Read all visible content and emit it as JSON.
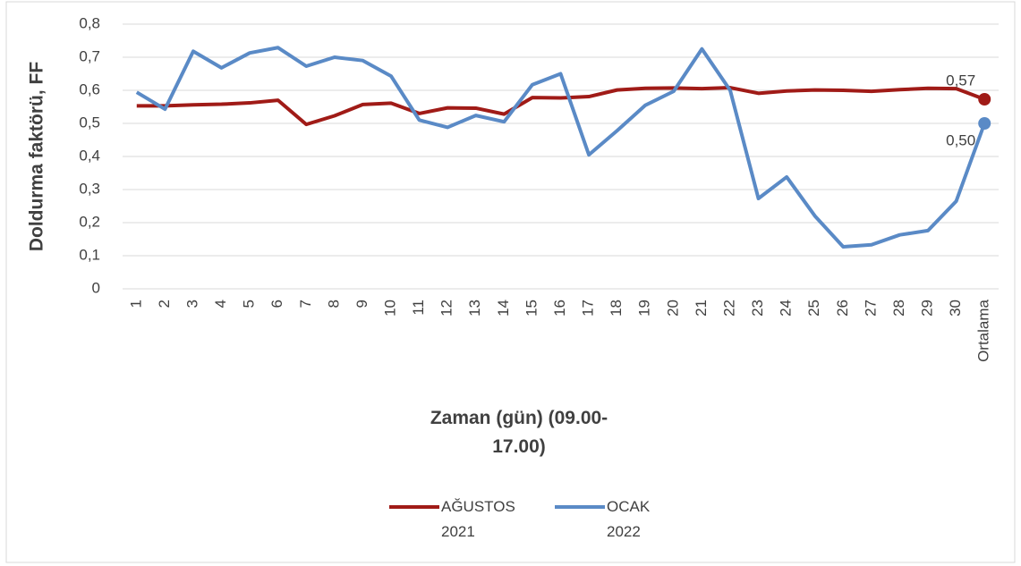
{
  "chart_data": {
    "type": "line",
    "y_label": "Doldurma faktörü, FF",
    "x_label": "Zaman (gün) (09.00-17.00)",
    "categories": [
      "1",
      "2",
      "3",
      "4",
      "5",
      "6",
      "7",
      "8",
      "9",
      "10",
      "11",
      "12",
      "13",
      "14",
      "15",
      "16",
      "17",
      "18",
      "19",
      "20",
      "21",
      "22",
      "23",
      "24",
      "25",
      "26",
      "27",
      "28",
      "29",
      "30",
      "Ortalama"
    ],
    "series": [
      {
        "name": "AĞUSTOS 2021",
        "color": "#a01b17",
        "values": [
          0.553,
          0.553,
          0.556,
          0.558,
          0.562,
          0.57,
          0.497,
          0.523,
          0.557,
          0.561,
          0.53,
          0.547,
          0.546,
          0.528,
          0.578,
          0.577,
          0.581,
          0.601,
          0.606,
          0.607,
          0.605,
          0.608,
          0.591,
          0.598,
          0.601,
          0.6,
          0.597,
          0.602,
          0.606,
          0.605,
          0.573
        ],
        "value_labels": [
          null,
          null,
          null,
          null,
          null,
          null,
          null,
          null,
          null,
          null,
          null,
          null,
          null,
          null,
          null,
          null,
          null,
          null,
          null,
          null,
          null,
          null,
          null,
          null,
          null,
          null,
          null,
          null,
          null,
          null,
          "0,57"
        ]
      },
      {
        "name": "OCAK 2022",
        "color": "#5a8ac6",
        "values": [
          0.594,
          0.543,
          0.718,
          0.668,
          0.713,
          0.729,
          0.673,
          0.7,
          0.69,
          0.643,
          0.51,
          0.488,
          0.524,
          0.505,
          0.617,
          0.65,
          0.405,
          0.478,
          0.555,
          0.597,
          0.725,
          0.6,
          0.273,
          0.338,
          0.22,
          0.127,
          0.133,
          0.163,
          0.176,
          0.265,
          0.5
        ],
        "value_labels": [
          null,
          null,
          null,
          null,
          null,
          null,
          null,
          null,
          null,
          null,
          null,
          null,
          null,
          null,
          null,
          null,
          null,
          null,
          null,
          null,
          null,
          null,
          null,
          null,
          null,
          null,
          null,
          null,
          null,
          null,
          "0,50"
        ]
      }
    ],
    "ylim": [
      0,
      0.8
    ],
    "yticks": [
      0,
      {
        "value": 0.1,
        "label": "0,1"
      },
      {
        "value": 0.2,
        "label": "0,2"
      },
      {
        "value": 0.3,
        "label": "0,3"
      },
      {
        "value": 0.4,
        "label": "0,4"
      },
      {
        "value": 0.5,
        "label": "0,5"
      },
      {
        "value": 0.6,
        "label": "0,6"
      },
      {
        "value": 0.7,
        "label": "0,7"
      },
      {
        "value": 0.8,
        "label": "0,8"
      }
    ],
    "grid": true,
    "legend": "bottom"
  }
}
